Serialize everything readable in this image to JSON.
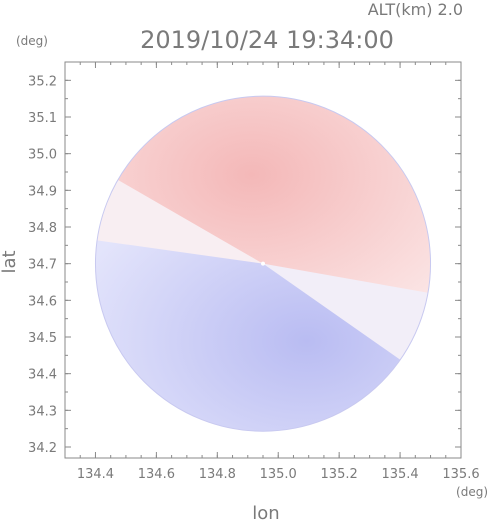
{
  "chart_data": {
    "type": "heatmap",
    "title": "2019/10/24 19:34:00",
    "altitude_label": "ALT(km) 2.0",
    "xlabel": "lon",
    "ylabel": "lat",
    "x_unit": "(deg)",
    "y_unit": "(deg)",
    "xlim": [
      134.3,
      135.6
    ],
    "ylim": [
      34.17,
      35.25
    ],
    "x_ticks": [
      134.4,
      134.6,
      134.8,
      135.0,
      135.2,
      135.4,
      135.6
    ],
    "x_tick_labels": [
      "134.4",
      "134.6",
      "134.8",
      "135.0",
      "135.2",
      "135.4",
      "135.6"
    ],
    "y_ticks": [
      34.2,
      34.3,
      34.4,
      34.5,
      34.6,
      34.7,
      34.8,
      34.9,
      35.0,
      35.1,
      35.2
    ],
    "y_tick_labels": [
      "34.2",
      "34.3",
      "34.4",
      "34.5",
      "34.6",
      "34.7",
      "34.8",
      "34.9",
      "35.0",
      "35.1",
      "35.2"
    ],
    "radar_center": {
      "lon": 134.95,
      "lat": 34.7
    },
    "radar_range_deg": 0.55,
    "colors": {
      "positive": "#f7c8c8",
      "negative": "#c9cbf5",
      "zero": "#ffffff",
      "axes": "#8a8a8a",
      "text": "#7a7a7a"
    }
  }
}
